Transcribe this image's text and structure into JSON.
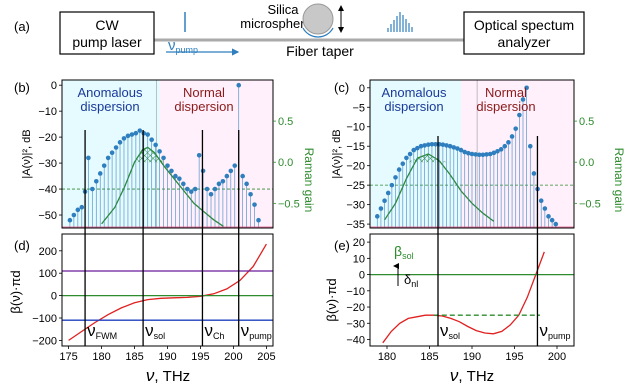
{
  "panel_labels": {
    "a": "(a)",
    "b": "(b)",
    "c": "(c)",
    "d": "(d)",
    "e": "(e)"
  },
  "schematic": {
    "laser_l1": "CW",
    "laser_l2": "pump laser",
    "micro_l1": "Silica",
    "micro_l2": "microsphere",
    "taper": "Fiber taper",
    "pump_nu": "ν",
    "pump_sub": "pump",
    "osa_l1": "Optical spectum",
    "osa_l2": "analyzer"
  },
  "panel_b": {
    "ylabel": "|A(ν)|², dB",
    "right_label": "Raman gain",
    "anom_l1": "Anomalous",
    "anom_l2": "dispersion",
    "norm_l1": "Normal",
    "norm_l2": "dispersion",
    "yticks": [
      "0",
      "−10",
      "−20",
      "−30",
      "−40",
      "−50"
    ],
    "rticks": [
      "0.5",
      "0.0",
      "−0.5"
    ]
  },
  "panel_c": {
    "ylabel": "|A(ν)|², dB",
    "right_label": "Raman gain",
    "anom_l1": "Anomalous",
    "anom_l2": "dispersion",
    "norm_l1": "Normal",
    "norm_l2": "dispersion",
    "yticks": [
      "0",
      "−5",
      "−10",
      "−15",
      "−20",
      "−25",
      "−30",
      "−35"
    ],
    "rticks": [
      "0.5",
      "0.0",
      "−0.5"
    ]
  },
  "panel_d": {
    "ylabel": "β(ν)·πd",
    "xlabel_nu": "ν",
    "xlabel_unit": ", THz",
    "yticks": [
      "200",
      "100",
      "0",
      "−100",
      "−200"
    ],
    "xticks": [
      "175",
      "180",
      "185",
      "190",
      "195",
      "200",
      "205"
    ],
    "marks": [
      {
        "nu": "ν",
        "sub": "FWM"
      },
      {
        "nu": "ν",
        "sub": "sol"
      },
      {
        "nu": "ν",
        "sub": "Ch"
      },
      {
        "nu": "ν",
        "sub": "pump"
      }
    ]
  },
  "panel_e": {
    "ylabel": "β(ν)·πd",
    "xlabel_nu": "ν",
    "xlabel_unit": ", THz",
    "yticks": [
      "20",
      "10",
      "0",
      "−10",
      "−20",
      "−30",
      "−40"
    ],
    "xticks": [
      "180",
      "185",
      "190",
      "195",
      "200"
    ],
    "beta_sol": "β",
    "beta_sub": "sol",
    "delta": "δ",
    "delta_sub": "nl",
    "marks": [
      {
        "nu": "ν",
        "sub": "sol"
      },
      {
        "nu": "ν",
        "sub": "pump"
      }
    ]
  },
  "colors": {
    "anomalous_text": "#1a3a9a",
    "normal_text": "#8b1a1a",
    "raman": "#2e8b2e",
    "stem": "#2f7fbf",
    "curve": "#e02020"
  },
  "chart_data": [
    {
      "type": "stem",
      "panel": "b",
      "xlim": [
        174,
        206
      ],
      "ylim": [
        -55,
        2
      ],
      "raman_ylim": [
        -0.8,
        1.0
      ],
      "x": [
        175.2,
        175.8,
        176.4,
        177.0,
        177.5,
        178.0,
        178.6,
        179.2,
        179.8,
        180.4,
        181.0,
        181.6,
        182.2,
        182.8,
        183.4,
        184.0,
        184.6,
        185.2,
        185.8,
        186.4,
        187.0,
        187.6,
        188.2,
        188.8,
        189.4,
        190.0,
        190.6,
        191.2,
        191.8,
        192.4,
        193.0,
        193.6,
        194.2,
        194.8,
        195.4,
        196.0,
        196.6,
        197.2,
        197.8,
        198.4,
        199.0,
        199.6,
        200.2,
        200.8,
        201.4,
        202.0,
        202.6,
        203.2,
        203.8
      ],
      "y": [
        -52,
        -50,
        -48,
        -47,
        -41,
        -28,
        -40,
        -37,
        -34,
        -31,
        -28,
        -26,
        -24,
        -22,
        -20.5,
        -19.5,
        -19,
        -18.5,
        -17.5,
        -18.5,
        -19,
        -21,
        -23,
        -25.5,
        -28,
        -31,
        -33,
        -35,
        -36,
        -38,
        -40,
        -41,
        -40,
        -27,
        -33,
        -40,
        -42,
        -40,
        -38,
        -37,
        -35,
        -33,
        -31,
        0,
        -35,
        -38,
        -42,
        -46,
        -52
      ],
      "raman_gain_x": [
        180.0,
        182.0,
        183.5,
        185.0,
        186.2,
        187.0,
        188.0,
        189.5,
        191.0,
        192.5,
        194.0,
        195.5,
        197.0,
        198.5
      ],
      "raman_gain_y": [
        -0.75,
        -0.55,
        -0.3,
        0.0,
        0.15,
        0.18,
        0.12,
        -0.05,
        -0.2,
        -0.35,
        -0.5,
        -0.6,
        -0.7,
        -0.78
      ],
      "dashed_line_y": -40,
      "dispersion_boundary_x": 188.3
    },
    {
      "type": "stem",
      "panel": "c",
      "xlim": [
        176,
        204
      ],
      "ylim": [
        -36,
        2
      ],
      "raman_ylim": [
        -0.8,
        1.0
      ],
      "x": [
        177.0,
        177.5,
        178.0,
        178.5,
        179.0,
        179.5,
        180.0,
        180.5,
        181.0,
        181.5,
        182.0,
        182.5,
        183.0,
        183.5,
        184.0,
        184.5,
        185.0,
        185.5,
        186.0,
        186.5,
        187.0,
        187.5,
        188.0,
        188.5,
        189.0,
        189.5,
        190.0,
        190.5,
        191.0,
        191.5,
        192.0,
        192.5,
        193.0,
        193.5,
        194.0,
        194.5,
        195.0,
        195.5,
        196.0,
        196.5,
        197.0,
        197.5,
        198.0,
        198.5,
        199.0,
        199.5,
        200.0,
        200.5,
        201.0,
        201.5
      ],
      "y": [
        -33,
        -31,
        -29,
        -27,
        -25,
        -23,
        -21,
        -19.5,
        -18,
        -17,
        -16,
        -15.5,
        -15,
        -14.8,
        -14.6,
        -14.5,
        -14.5,
        -14.5,
        -14.6,
        -14.8,
        -15,
        -15.3,
        -15.6,
        -16,
        -16.5,
        -16.8,
        -17,
        -17.1,
        -17.2,
        -17.2,
        -17.1,
        -17,
        -16.7,
        -16.3,
        -15.8,
        -15,
        -14,
        -12.5,
        -10.5,
        -7,
        -3,
        0,
        -15,
        -22,
        -26,
        -29,
        -31,
        -33,
        -34,
        -35
      ],
      "raman_gain_x": [
        178.0,
        179.5,
        181.0,
        182.5,
        184.0,
        185.5,
        187.0,
        188.5,
        190.0,
        191.5,
        193.0
      ],
      "raman_gain_y": [
        -0.7,
        -0.5,
        -0.2,
        0.05,
        0.1,
        0.02,
        -0.15,
        -0.35,
        -0.5,
        -0.62,
        -0.72
      ],
      "dashed_line_y": -25,
      "dispersion_boundary_x": 190.7
    },
    {
      "type": "line",
      "panel": "d",
      "xlabel": "ν, THz",
      "ylabel": "β(ν)·πd",
      "xlim": [
        174,
        206
      ],
      "ylim": [
        -225,
        275
      ],
      "series": [
        {
          "color": "#e02020",
          "x": [
            175,
            177,
            179,
            181,
            183,
            185,
            187,
            189,
            191,
            193,
            195,
            197,
            199,
            201,
            203,
            205
          ],
          "y": [
            -200,
            -160,
            -120,
            -85,
            -55,
            -32,
            -18,
            -12,
            -10,
            -8,
            -3,
            8,
            30,
            68,
            130,
            230
          ]
        },
        {
          "color": "#6a1b9a",
          "x": [
            174,
            206
          ],
          "y": [
            110,
            110
          ]
        },
        {
          "color": "#2e8b2e",
          "x": [
            174,
            206
          ],
          "y": [
            0,
            0
          ]
        },
        {
          "color": "#1f3fbf",
          "x": [
            174,
            206
          ],
          "y": [
            -110,
            -110
          ]
        }
      ],
      "vlines_x": [
        177.5,
        186.3,
        195.3,
        200.8
      ]
    },
    {
      "type": "line",
      "panel": "e",
      "xlabel": "ν, THz",
      "ylabel": "β(ν)·πd",
      "xlim": [
        178,
        202
      ],
      "ylim": [
        -44,
        25
      ],
      "series": [
        {
          "color": "#e02020",
          "x": [
            179.5,
            180.5,
            181.5,
            182.5,
            183.5,
            184.5,
            185.5,
            186.5,
            187.5,
            188.5,
            189.5,
            190.5,
            191.5,
            192.5,
            193.5,
            194.5,
            195.5,
            196.5,
            197.5,
            198.5
          ],
          "y": [
            -42,
            -35,
            -30,
            -27,
            -26,
            -25,
            -25,
            -25.5,
            -27,
            -29,
            -32,
            -34.5,
            -36,
            -36.5,
            -35,
            -31,
            -25,
            -14,
            0,
            14
          ]
        },
        {
          "color": "#2e8b2e",
          "x": [
            178,
            202
          ],
          "y": [
            0,
            0
          ]
        },
        {
          "color": "#2e8b2e",
          "x": [
            185.5,
            198
          ],
          "y": [
            -25,
            -25
          ],
          "dashed": true
        }
      ],
      "vlines_x": [
        186.0,
        197.7
      ]
    }
  ]
}
